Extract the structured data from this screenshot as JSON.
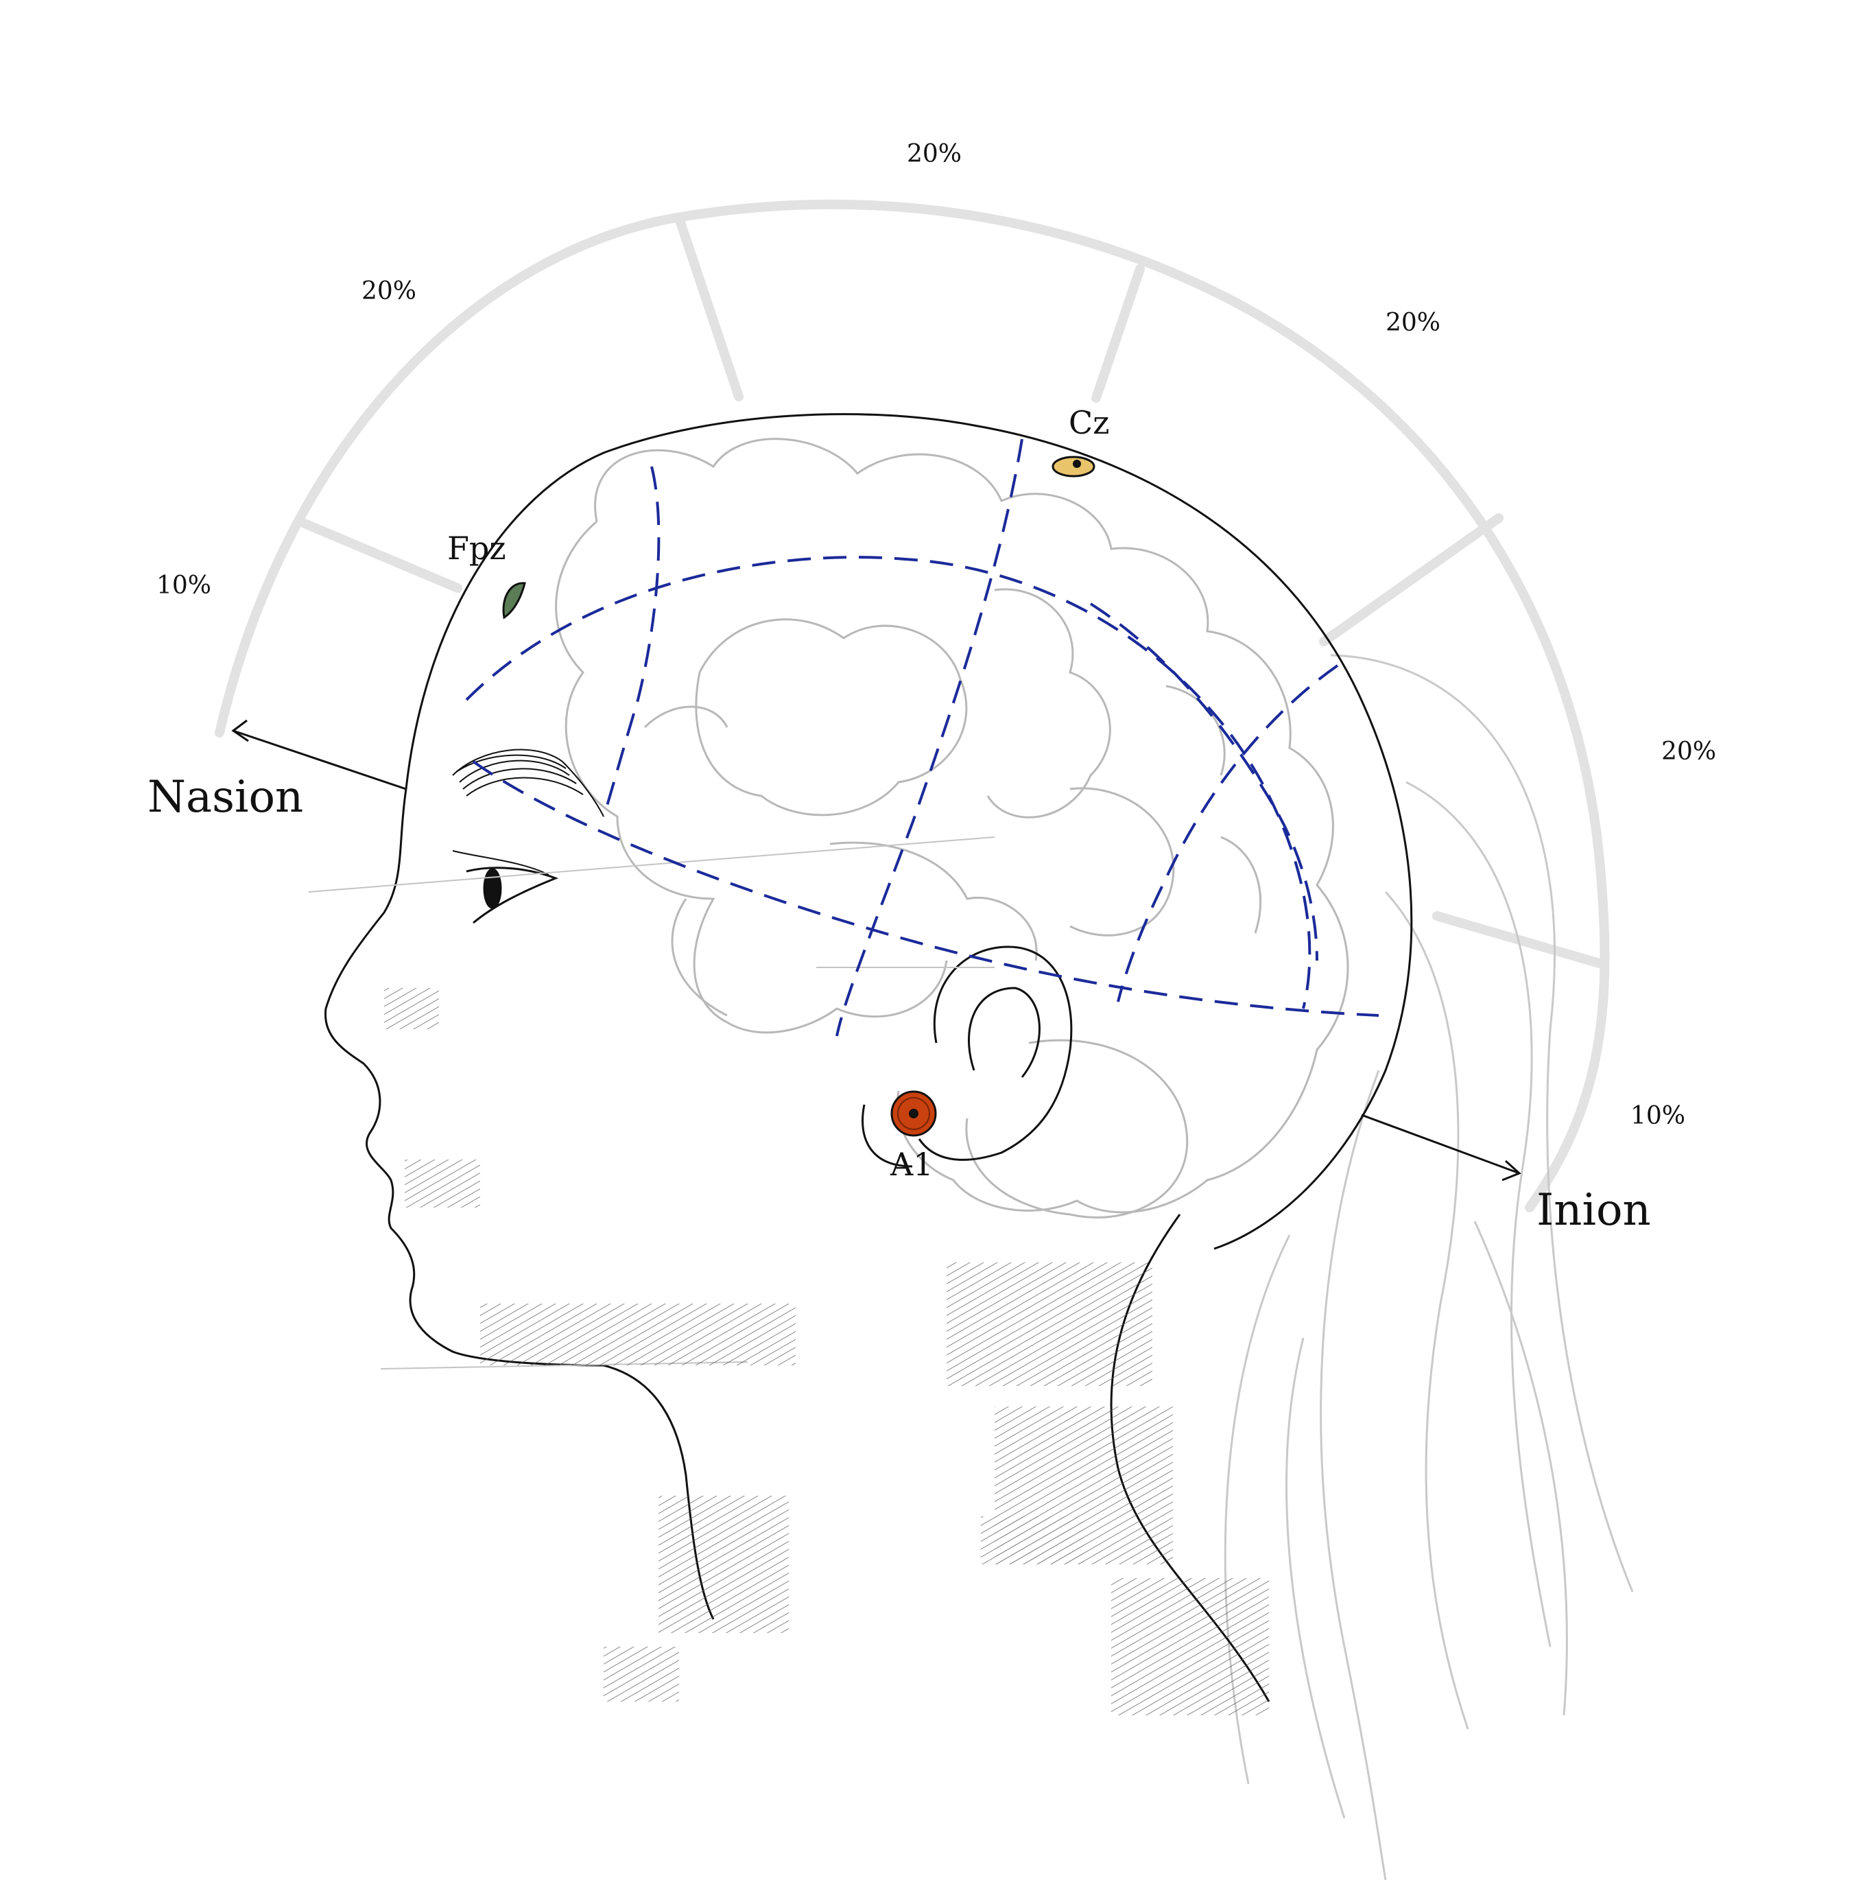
{
  "segments": {
    "seg_10_front": "10%",
    "seg_20_a": "20%",
    "seg_20_top": "20%",
    "seg_20_b": "20%",
    "seg_20_back": "20%",
    "seg_10_back": "10%"
  },
  "electrodes": {
    "fpz": {
      "label": "Fpz",
      "color": "#5a7d56"
    },
    "cz": {
      "label": "Cz",
      "color": "#e9c46a"
    },
    "a1": {
      "label": "A1",
      "color": "#c8410f"
    }
  },
  "landmarks": {
    "nasion": "Nasion",
    "inion": "Inion"
  },
  "colors": {
    "guide_grey": "#e2e2e2",
    "dash_blue": "#1b2a9a",
    "sketch_grey": "#bdbdbd",
    "ink": "#111111"
  }
}
